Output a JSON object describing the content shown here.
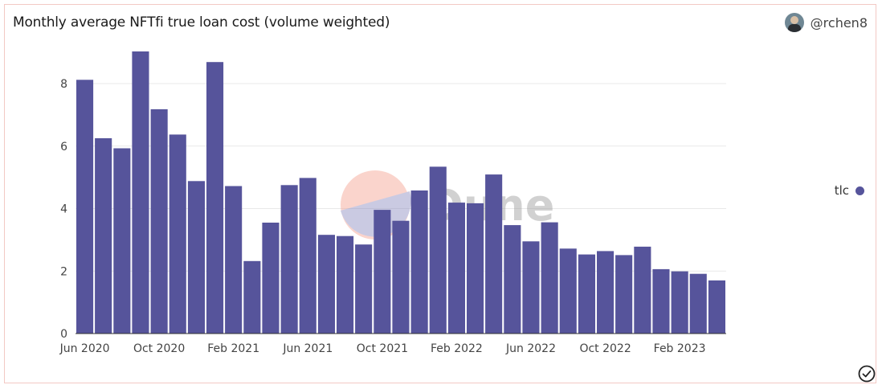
{
  "header": {
    "title": "Monthly average NFTfi true loan cost (volume weighted)",
    "author": "@rchen8"
  },
  "watermark": {
    "text": "Dune"
  },
  "colors": {
    "bar": "#56549b",
    "grid": "#e9e9e9",
    "card_border": "#f3c9c4"
  },
  "icons": {
    "avatar": "avatar-icon",
    "check": "check-circle-icon"
  },
  "chart_data": {
    "type": "bar",
    "title": "Monthly average NFTfi true loan cost (volume weighted)",
    "xlabel": "",
    "ylabel": "",
    "ylim": [
      0,
      9
    ],
    "yticks": [
      0,
      2,
      4,
      6,
      8
    ],
    "grid": true,
    "legend_position": "right",
    "x_tick_labels": [
      {
        "index": 0,
        "label": "Jun 2020"
      },
      {
        "index": 4,
        "label": "Oct 2020"
      },
      {
        "index": 8,
        "label": "Feb 2021"
      },
      {
        "index": 12,
        "label": "Jun 2021"
      },
      {
        "index": 16,
        "label": "Oct 2021"
      },
      {
        "index": 20,
        "label": "Feb 2022"
      },
      {
        "index": 24,
        "label": "Jun 2022"
      },
      {
        "index": 28,
        "label": "Oct 2022"
      },
      {
        "index": 32,
        "label": "Feb 2023"
      }
    ],
    "categories": [
      "2020-06",
      "2020-07",
      "2020-08",
      "2020-09",
      "2020-10",
      "2020-11",
      "2020-12",
      "2021-01",
      "2021-02",
      "2021-03",
      "2021-04",
      "2021-05",
      "2021-06",
      "2021-07",
      "2021-08",
      "2021-09",
      "2021-10",
      "2021-11",
      "2021-12",
      "2022-01",
      "2022-02",
      "2022-03",
      "2022-04",
      "2022-05",
      "2022-06",
      "2022-07",
      "2022-08",
      "2022-09",
      "2022-10",
      "2022-11",
      "2022-12",
      "2023-01",
      "2023-02",
      "2023-03",
      "2023-04"
    ],
    "series": [
      {
        "name": "tlc",
        "values": [
          8.12,
          6.25,
          5.93,
          9.03,
          7.18,
          6.37,
          4.88,
          8.69,
          4.72,
          2.32,
          3.55,
          4.75,
          4.98,
          3.16,
          3.12,
          2.85,
          3.96,
          3.61,
          4.58,
          5.34,
          4.19,
          4.17,
          5.09,
          3.47,
          2.95,
          3.56,
          2.72,
          2.53,
          2.64,
          2.51,
          2.78,
          2.06,
          1.99,
          1.91,
          1.7
        ]
      }
    ]
  }
}
